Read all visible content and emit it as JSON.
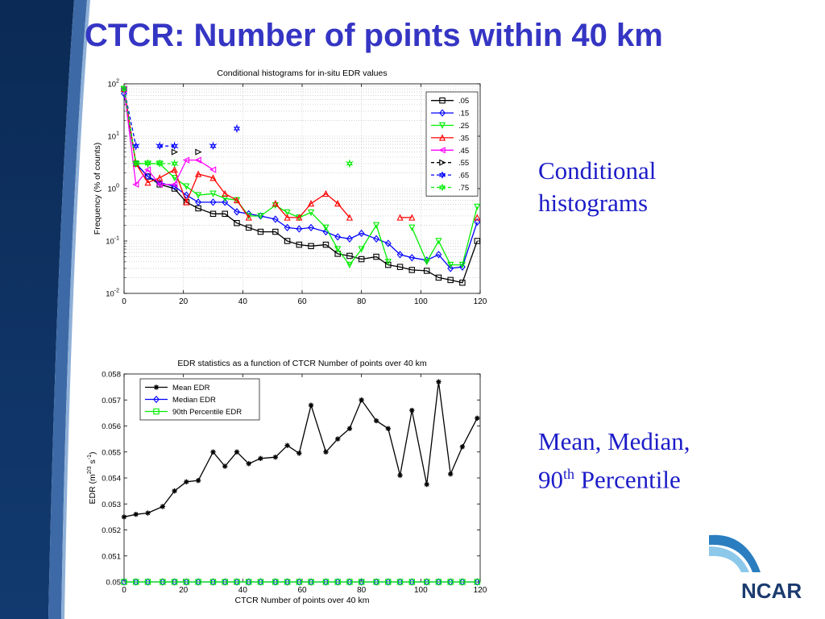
{
  "slide": {
    "title": "CTCR: Number of points within 40 km",
    "cond_label_line1": "Conditional",
    "cond_label_line2": "histograms",
    "stats_label_line1": "Mean, Median,",
    "stats_label_prefix": "90",
    "stats_label_sup": "th",
    "stats_label_suffix": " Percentile",
    "logo_text": "NCAR"
  },
  "colors": {
    "title": "#3535c4",
    "side_text": "#1c1cc8",
    "sidebar_dark": "#0b2a55",
    "sidebar_mid": "#3d6aa6",
    "logo_text": "#1b3b6f",
    "logo_swoosh": "#2a7ec0"
  },
  "chart_data": [
    {
      "type": "line",
      "title": "Conditional histograms for in-situ EDR values",
      "xlabel": "",
      "ylabel": "Frequency (% of counts)",
      "xlim": [
        0,
        120
      ],
      "ylim": [
        0.01,
        100
      ],
      "yscale": "log",
      "x_ticks": [
        0,
        20,
        40,
        60,
        80,
        100,
        120
      ],
      "y_ticks": [
        0.01,
        0.1,
        1,
        10,
        100
      ],
      "y_tick_labels": [
        {
          "base": "10",
          "exp": "-2"
        },
        {
          "base": "10",
          "exp": "-1"
        },
        {
          "base": "10",
          "exp": "0"
        },
        {
          "base": "10",
          "exp": "1"
        },
        {
          "base": "10",
          "exp": "2"
        }
      ],
      "grid": true,
      "legend_position": "top-right",
      "series": [
        {
          "name": ".05",
          "color": "#000000",
          "marker": "square",
          "dash": "solid",
          "points": [
            [
              0,
              80
            ],
            [
              4,
              3
            ],
            [
              8,
              1.7
            ],
            [
              12,
              1.2
            ],
            [
              17,
              1.0
            ],
            [
              21,
              0.55
            ],
            [
              25,
              0.42
            ],
            [
              30,
              0.33
            ],
            [
              34,
              0.33
            ],
            [
              38,
              0.22
            ],
            [
              42,
              0.18
            ],
            [
              46,
              0.15
            ],
            [
              51,
              0.15
            ],
            [
              55,
              0.1
            ],
            [
              59,
              0.085
            ],
            [
              63,
              0.08
            ],
            [
              68,
              0.085
            ],
            [
              72,
              0.057
            ],
            [
              76,
              0.052
            ],
            [
              80,
              0.045
            ],
            [
              85,
              0.05
            ],
            [
              89,
              0.035
            ],
            [
              93,
              0.032
            ],
            [
              97,
              0.028
            ],
            [
              102,
              0.027
            ],
            [
              106,
              0.02
            ],
            [
              110,
              0.018
            ],
            [
              114,
              0.016
            ],
            [
              119,
              0.1
            ]
          ]
        },
        {
          "name": ".15",
          "color": "#0000ff",
          "marker": "diamond",
          "dash": "solid",
          "points": [
            [
              0,
              65
            ],
            [
              4,
              3
            ],
            [
              8,
              1.7
            ],
            [
              12,
              1.3
            ],
            [
              17,
              1.1
            ],
            [
              21,
              0.75
            ],
            [
              25,
              0.55
            ],
            [
              30,
              0.55
            ],
            [
              34,
              0.55
            ],
            [
              38,
              0.36
            ],
            [
              42,
              0.33
            ],
            [
              46,
              0.3
            ],
            [
              51,
              0.26
            ],
            [
              55,
              0.18
            ],
            [
              59,
              0.17
            ],
            [
              63,
              0.18
            ],
            [
              68,
              0.15
            ],
            [
              72,
              0.12
            ],
            [
              76,
              0.11
            ],
            [
              80,
              0.14
            ],
            [
              85,
              0.11
            ],
            [
              89,
              0.09
            ],
            [
              93,
              0.055
            ],
            [
              97,
              0.048
            ],
            [
              102,
              0.043
            ],
            [
              106,
              0.055
            ],
            [
              110,
              0.03
            ],
            [
              114,
              0.032
            ],
            [
              119,
              0.23
            ]
          ]
        },
        {
          "name": ".25",
          "color": "#00ee00",
          "marker": "triangle-down",
          "dash": "solid",
          "points": [
            [
              0,
              80
            ],
            [
              4,
              3
            ],
            [
              8,
              3
            ],
            [
              12,
              3
            ],
            [
              17,
              1.6
            ],
            [
              21,
              1.1
            ],
            [
              25,
              0.75
            ],
            [
              30,
              0.8
            ],
            [
              34,
              0.65
            ],
            [
              38,
              0.6
            ],
            [
              42,
              0.3
            ],
            [
              46,
              0.3
            ],
            [
              51,
              0.48
            ],
            [
              55,
              0.35
            ],
            [
              59,
              0.28
            ],
            [
              63,
              0.35
            ],
            [
              68,
              0.18
            ],
            [
              72,
              0.07
            ],
            [
              76,
              0.035
            ],
            [
              80,
              0.07
            ],
            [
              85,
              0.2
            ],
            [
              89,
              0.04
            ],
            [
              null,
              null
            ],
            [
              97,
              0.18
            ],
            [
              102,
              0.04
            ],
            [
              106,
              0.1
            ],
            [
              110,
              0.035
            ],
            [
              114,
              0.035
            ],
            [
              119,
              0.45
            ]
          ]
        },
        {
          "name": ".35",
          "color": "#ff0000",
          "marker": "triangle-up",
          "dash": "solid",
          "points": [
            [
              0,
              80
            ],
            [
              4,
              3
            ],
            [
              8,
              1.3
            ],
            [
              12,
              1.6
            ],
            [
              17,
              2.3
            ],
            [
              21,
              0.55
            ],
            [
              25,
              1.9
            ],
            [
              30,
              1.6
            ],
            [
              34,
              0.8
            ],
            [
              38,
              0.6
            ],
            [
              42,
              0.28
            ],
            [
              null,
              null
            ],
            [
              51,
              0.52
            ],
            [
              55,
              0.28
            ],
            [
              59,
              0.28
            ],
            [
              63,
              0.52
            ],
            [
              68,
              0.8
            ],
            [
              72,
              0.52
            ],
            [
              76,
              0.28
            ],
            [
              null,
              null
            ],
            [
              93,
              0.28
            ],
            [
              97,
              0.28
            ],
            [
              null,
              null
            ],
            [
              119,
              0.28
            ]
          ]
        },
        {
          "name": ".45",
          "color": "#ff00ff",
          "marker": "triangle-left",
          "dash": "solid",
          "points": [
            [
              0,
              80
            ],
            [
              4,
              1.2
            ],
            [
              8,
              2.3
            ],
            [
              12,
              1.2
            ],
            [
              17,
              1.2
            ],
            [
              21,
              3.5
            ],
            [
              25,
              3.5
            ],
            [
              30,
              2.3
            ]
          ]
        },
        {
          "name": ".55",
          "color": "#000000",
          "marker": "triangle-right",
          "dash": "dashed",
          "points": [
            [
              17,
              5
            ],
            [
              null,
              null
            ],
            [
              25,
              5
            ]
          ]
        },
        {
          "name": ".65",
          "color": "#0000ff",
          "marker": "hexagram",
          "dash": "dashed",
          "points": [
            [
              0,
              80
            ],
            [
              4,
              6.5
            ],
            [
              null,
              null
            ],
            [
              12,
              6.5
            ],
            [
              17,
              6.5
            ],
            [
              null,
              null
            ],
            [
              30,
              6.5
            ],
            [
              null,
              null
            ],
            [
              38,
              14
            ]
          ]
        },
        {
          "name": ".75",
          "color": "#00ee00",
          "marker": "hexagram",
          "dash": "dashed",
          "points": [
            [
              0,
              80
            ],
            [
              4,
              3
            ],
            [
              8,
              3
            ],
            [
              12,
              3
            ],
            [
              17,
              3
            ],
            [
              null,
              null
            ],
            [
              76,
              3
            ]
          ]
        }
      ]
    },
    {
      "type": "line",
      "title": "EDR statistics as a function of CTCR Number of points over 40 km",
      "xlabel": "CTCR Number of points over 40 km",
      "ylabel": "EDR (m",
      "ylabel_exp1": "2/3",
      "ylabel_mid": " s",
      "ylabel_exp2": "-1",
      "ylabel_end": ")",
      "xlim": [
        0,
        120
      ],
      "ylim": [
        0.05,
        0.058
      ],
      "x_ticks": [
        0,
        20,
        40,
        60,
        80,
        100,
        120
      ],
      "y_ticks": [
        0.05,
        0.051,
        0.052,
        0.053,
        0.054,
        0.055,
        0.056,
        0.057,
        0.058
      ],
      "y_tick_labels": [
        "0.05",
        "0.051",
        "0.052",
        "0.053",
        "0.054",
        "0.055",
        "0.056",
        "0.057",
        "0.058"
      ],
      "grid": false,
      "legend_position": "top-left",
      "series": [
        {
          "name": "Mean EDR",
          "color": "#000000",
          "marker": "asterisk",
          "dash": "solid",
          "points": [
            [
              0,
              0.0525
            ],
            [
              4,
              0.0526
            ],
            [
              8,
              0.05265
            ],
            [
              13,
              0.0529
            ],
            [
              17,
              0.0535
            ],
            [
              21,
              0.05385
            ],
            [
              25,
              0.0539
            ],
            [
              30,
              0.055
            ],
            [
              34,
              0.05445
            ],
            [
              38,
              0.055
            ],
            [
              42,
              0.05455
            ],
            [
              46,
              0.05475
            ],
            [
              51,
              0.0548
            ],
            [
              55,
              0.05525
            ],
            [
              59,
              0.05495
            ],
            [
              63,
              0.0568
            ],
            [
              68,
              0.055
            ],
            [
              72,
              0.0555
            ],
            [
              76,
              0.0559
            ],
            [
              80,
              0.057
            ],
            [
              85,
              0.0562
            ],
            [
              89,
              0.0559
            ],
            [
              93,
              0.0541
            ],
            [
              97,
              0.0566
            ],
            [
              102,
              0.05375
            ],
            [
              106,
              0.0577
            ],
            [
              110,
              0.05415
            ],
            [
              114,
              0.0552
            ],
            [
              119,
              0.0563
            ]
          ]
        },
        {
          "name": "Median EDR",
          "color": "#0000ff",
          "marker": "diamond",
          "dash": "solid",
          "points": [
            [
              0,
              0.05
            ],
            [
              4,
              0.05
            ],
            [
              8,
              0.05
            ],
            [
              13,
              0.05
            ],
            [
              17,
              0.05
            ],
            [
              21,
              0.05
            ],
            [
              25,
              0.05
            ],
            [
              30,
              0.05
            ],
            [
              34,
              0.05
            ],
            [
              38,
              0.05
            ],
            [
              42,
              0.05
            ],
            [
              46,
              0.05
            ],
            [
              51,
              0.05
            ],
            [
              55,
              0.05
            ],
            [
              59,
              0.05
            ],
            [
              63,
              0.05
            ],
            [
              68,
              0.05
            ],
            [
              72,
              0.05
            ],
            [
              76,
              0.05
            ],
            [
              80,
              0.05
            ],
            [
              85,
              0.05
            ],
            [
              89,
              0.05
            ],
            [
              93,
              0.05
            ],
            [
              97,
              0.05
            ],
            [
              102,
              0.05
            ],
            [
              106,
              0.05
            ],
            [
              110,
              0.05
            ],
            [
              114,
              0.05
            ],
            [
              119,
              0.05
            ]
          ]
        },
        {
          "name": "90th Percentile EDR",
          "color": "#00ee00",
          "marker": "square",
          "dash": "solid",
          "points": [
            [
              0,
              0.05
            ],
            [
              4,
              0.05
            ],
            [
              8,
              0.05
            ],
            [
              13,
              0.05
            ],
            [
              17,
              0.05
            ],
            [
              21,
              0.05
            ],
            [
              25,
              0.05
            ],
            [
              30,
              0.05
            ],
            [
              34,
              0.05
            ],
            [
              38,
              0.05
            ],
            [
              42,
              0.05
            ],
            [
              46,
              0.05
            ],
            [
              51,
              0.05
            ],
            [
              55,
              0.05
            ],
            [
              59,
              0.05
            ],
            [
              63,
              0.05
            ],
            [
              68,
              0.05
            ],
            [
              72,
              0.05
            ],
            [
              76,
              0.05
            ],
            [
              80,
              0.05
            ],
            [
              85,
              0.05
            ],
            [
              89,
              0.05
            ],
            [
              93,
              0.05
            ],
            [
              97,
              0.05
            ],
            [
              102,
              0.05
            ],
            [
              106,
              0.05
            ],
            [
              110,
              0.05
            ],
            [
              114,
              0.05
            ],
            [
              119,
              0.05
            ]
          ]
        }
      ]
    }
  ]
}
